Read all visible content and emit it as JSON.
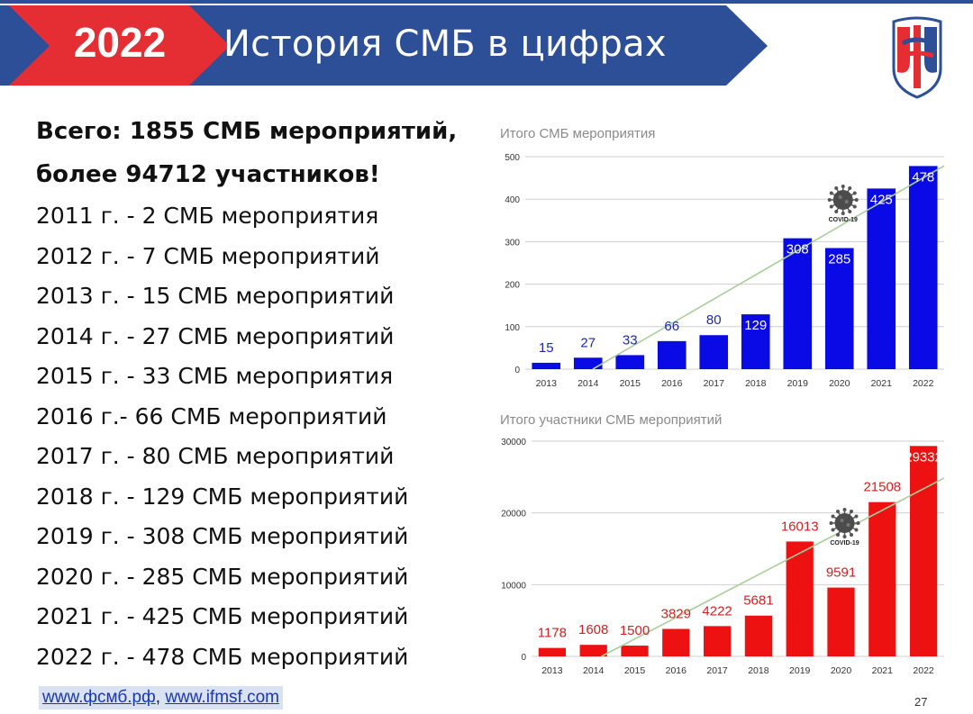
{
  "header": {
    "year": "2022",
    "title": "История СМБ в цифрах",
    "colors": {
      "red": "#e52d34",
      "blue": "#2c4f97"
    }
  },
  "summary": {
    "line1": "Всего: 1855 СМБ мероприятий,",
    "line2": "более 94712 участников!"
  },
  "list": [
    "2011 г. - 2 СМБ мероприятия",
    "2012 г. - 7 СМБ мероприятий",
    "2013 г. - 15 СМБ мероприятий",
    "2014 г. - 27 СМБ мероприятий",
    "2015 г. - 33 СМБ мероприятия",
    "2016 г.- 66 СМБ мероприятий",
    "2017 г. - 80 СМБ мероприятий",
    "2018 г. - 129 СМБ мероприятий",
    "2019 г. - 308 СМБ мероприятий",
    "2020 г. - 285 СМБ мероприятий",
    "2021 г. - 425 СМБ мероприятий",
    "2022 г. - 478 СМБ мероприятий"
  ],
  "footer": {
    "link1": "www.фсмб.рф",
    "separator": ", ",
    "link2": "www.ifmsf.com",
    "page_number": "27"
  },
  "chart_data": [
    {
      "type": "bar",
      "title": "Итого СМБ мероприятия",
      "categories": [
        "2013",
        "2014",
        "2015",
        "2016",
        "2017",
        "2018",
        "2019",
        "2020",
        "2021",
        "2022"
      ],
      "values": [
        15,
        27,
        33,
        66,
        80,
        129,
        308,
        285,
        425,
        478
      ],
      "ylim": [
        0,
        500
      ],
      "yticks": [
        0,
        100,
        200,
        300,
        400,
        500
      ],
      "grid": true,
      "trendline": true,
      "bar_color": "#0a0ae6",
      "trend_color": "#a9cf9a",
      "annotation": {
        "label": "COVID-19",
        "icon": "coronavirus-icon",
        "category": "2020"
      }
    },
    {
      "type": "bar",
      "title": "Итого участники СМБ мероприятий",
      "categories": [
        "2013",
        "2014",
        "2015",
        "2016",
        "2017",
        "2018",
        "2019",
        "2020",
        "2021",
        "2022"
      ],
      "values": [
        1178,
        1608,
        1500,
        3829,
        4222,
        5681,
        16013,
        9591,
        21508,
        29332
      ],
      "ylim": [
        0,
        30000
      ],
      "yticks": [
        0,
        10000,
        20000,
        30000
      ],
      "grid": true,
      "trendline": true,
      "bar_color": "#ee1111",
      "trend_color": "#a9cf9a",
      "annotation": {
        "label": "COVID-19",
        "icon": "coronavirus-icon",
        "category": "2020"
      }
    }
  ]
}
